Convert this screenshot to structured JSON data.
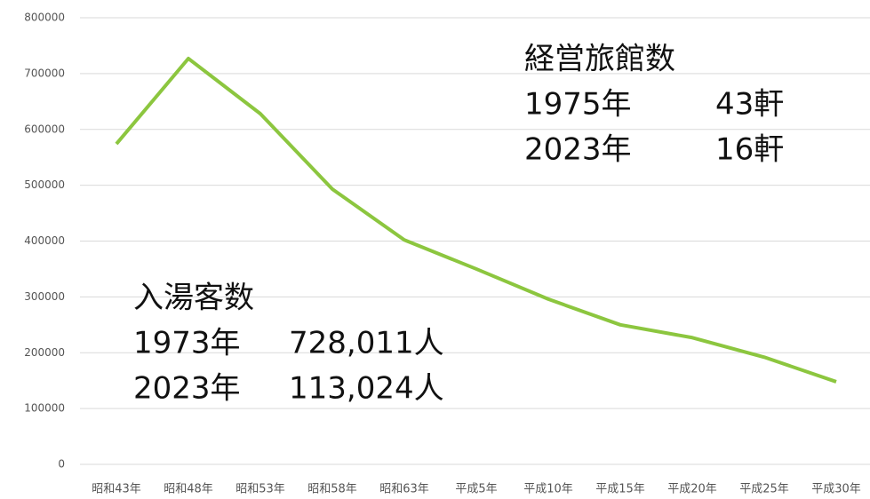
{
  "chart_data": {
    "type": "line",
    "categories": [
      "昭和43年",
      "昭和48年",
      "昭和53年",
      "昭和58年",
      "昭和63年",
      "平成5年",
      "平成10年",
      "平成15年",
      "平成20年",
      "平成25年",
      "平成30年"
    ],
    "series": [
      {
        "color": "#8cc63f",
        "values": [
          574000,
          727000,
          628000,
          493000,
          402000,
          350000,
          296000,
          250000,
          227000,
          192000,
          148000
        ]
      }
    ],
    "ylim": [
      0,
      800000
    ],
    "yticks": [
      0,
      100000,
      200000,
      300000,
      400000,
      500000,
      600000,
      700000,
      800000
    ],
    "grid": true,
    "annotations": [
      {
        "title": "経営旅館数",
        "rows": [
          [
            "1975年",
            "43軒"
          ],
          [
            "2023年",
            "16軒"
          ]
        ]
      },
      {
        "title": "入湯客数",
        "rows": [
          [
            "1973年",
            "728,011人"
          ],
          [
            "2023年",
            "113,024人"
          ]
        ]
      }
    ]
  }
}
